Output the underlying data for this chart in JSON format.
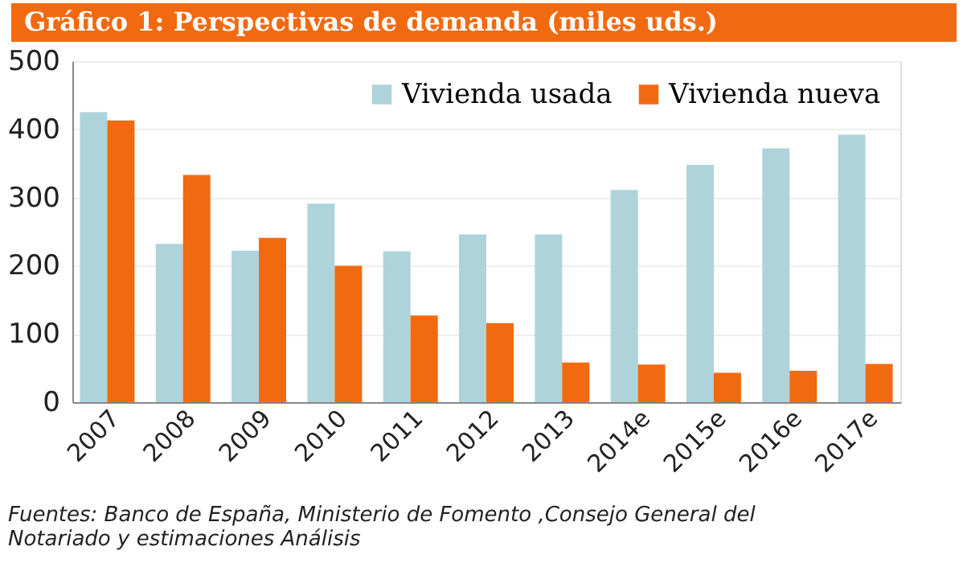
{
  "chart_data": {
    "type": "bar",
    "title": "Gráfico 1: Perspectivas de demanda (miles uds.)",
    "categories": [
      "2007",
      "2008",
      "2009",
      "2010",
      "2011",
      "2012",
      "2013",
      "2014e",
      "2015e",
      "2016e",
      "2017e"
    ],
    "series": [
      {
        "name": "Vivienda usada",
        "color": "#aed3db",
        "values": [
          425,
          232,
          222,
          291,
          221,
          246,
          246,
          311,
          348,
          372,
          392
        ]
      },
      {
        "name": "Vivienda nueva",
        "color": "#f26a10",
        "values": [
          413,
          333,
          241,
          200,
          127,
          116,
          58,
          55,
          43,
          46,
          56
        ]
      }
    ],
    "ylim": [
      0,
      500
    ],
    "yticks": [
      0,
      100,
      200,
      300,
      400,
      500
    ],
    "grid": "y",
    "legend": "top right",
    "annotations": [
      "Fuentes: Banco de España, Ministerio de Fomento ,Consejo General del Notariado y estimaciones Análisis"
    ]
  }
}
